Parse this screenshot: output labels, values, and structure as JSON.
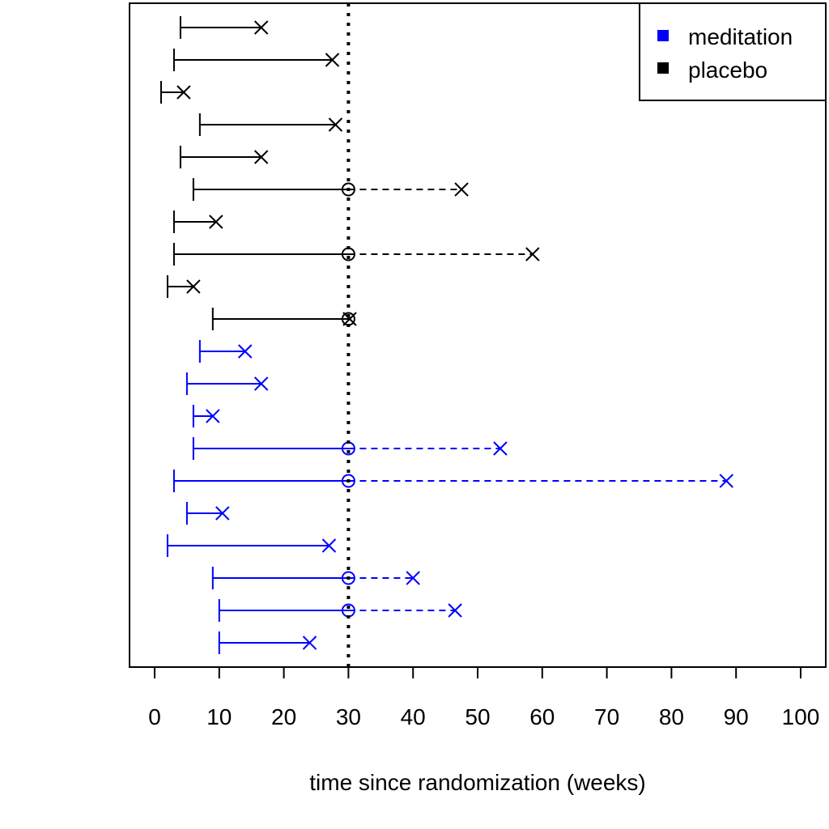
{
  "chart_data": {
    "type": "timeline",
    "xlabel": "time since randomization (weeks)",
    "ylabel": "",
    "title": "",
    "xlim": [
      0,
      100
    ],
    "x_ticks": [
      0,
      10,
      20,
      30,
      40,
      50,
      60,
      70,
      80,
      90,
      100
    ],
    "reference_line": {
      "x": 30,
      "style": "dotted",
      "color": "#000000"
    },
    "legend": {
      "position": "top-right",
      "entries": [
        {
          "label": "meditation",
          "color": "#0000ff"
        },
        {
          "label": "placebo",
          "color": "#000000"
        }
      ]
    },
    "subjects": [
      {
        "group": "placebo",
        "start": 4,
        "event": 16.5
      },
      {
        "group": "placebo",
        "start": 3,
        "event": 27.5
      },
      {
        "group": "placebo",
        "start": 1,
        "event": 4.5
      },
      {
        "group": "placebo",
        "start": 7,
        "event": 28
      },
      {
        "group": "placebo",
        "start": 4,
        "event": 16.5
      },
      {
        "group": "placebo",
        "start": 6,
        "censor": 30,
        "event": 47.5
      },
      {
        "group": "placebo",
        "start": 3,
        "event": 9.5
      },
      {
        "group": "placebo",
        "start": 3,
        "censor": 30,
        "event": 58.5
      },
      {
        "group": "placebo",
        "start": 2,
        "event": 6
      },
      {
        "group": "placebo",
        "start": 9,
        "censor": 30,
        "event": 30.2
      },
      {
        "group": "meditation",
        "start": 7,
        "event": 14
      },
      {
        "group": "meditation",
        "start": 5,
        "event": 16.5
      },
      {
        "group": "meditation",
        "start": 6,
        "event": 9
      },
      {
        "group": "meditation",
        "start": 6,
        "censor": 30,
        "event": 53.5
      },
      {
        "group": "meditation",
        "start": 3,
        "censor": 30,
        "event": 88.5
      },
      {
        "group": "meditation",
        "start": 5,
        "event": 10.5
      },
      {
        "group": "meditation",
        "start": 2,
        "event": 27
      },
      {
        "group": "meditation",
        "start": 9,
        "censor": 30,
        "event": 40
      },
      {
        "group": "meditation",
        "start": 10,
        "censor": 30,
        "event": 46.5
      },
      {
        "group": "meditation",
        "start": 10,
        "event": 24
      }
    ]
  }
}
